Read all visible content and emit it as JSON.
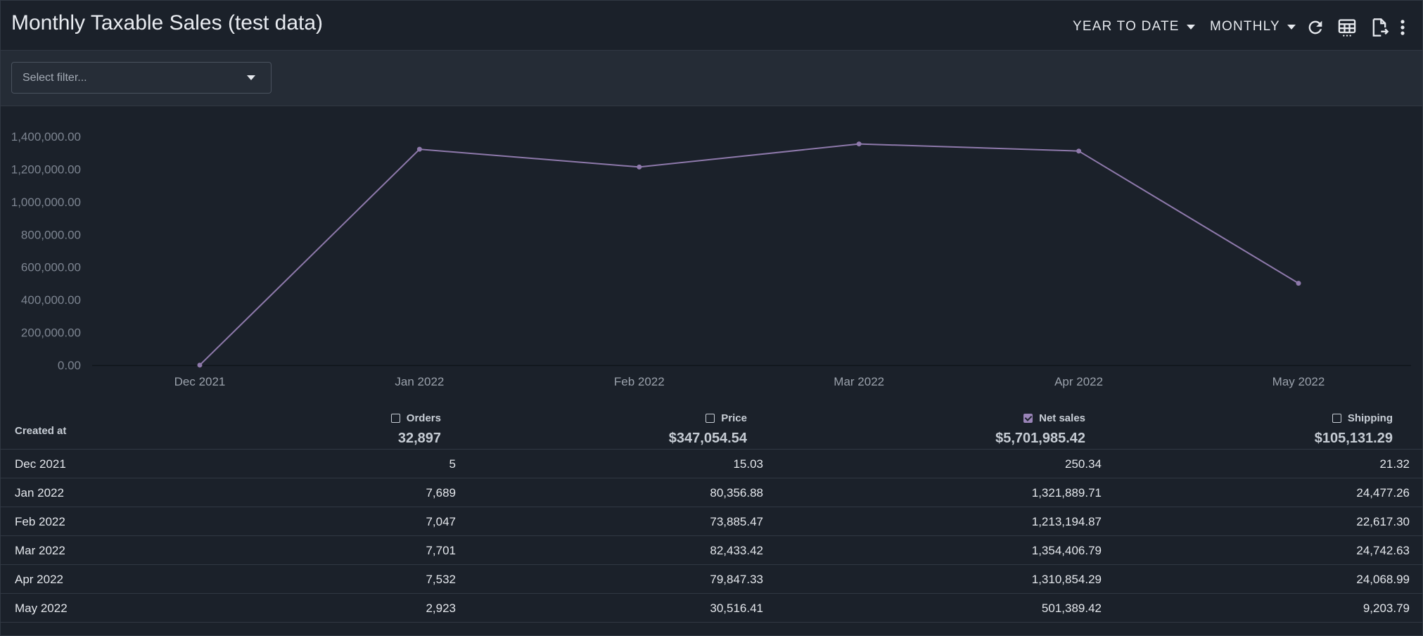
{
  "header": {
    "title": "Monthly Taxable Sales (test data)",
    "date_range_label": "YEAR TO DATE",
    "interval_label": "MONTHLY"
  },
  "filter": {
    "placeholder": "Select filter..."
  },
  "colors": {
    "line": "#8e79ab",
    "background": "#1b212a",
    "accent_checkbox": "#9a84b8"
  },
  "icons": [
    "refresh-icon",
    "table-view-icon",
    "export-document-icon",
    "more-vert-icon"
  ],
  "chart_data": {
    "type": "line",
    "title": "",
    "xlabel": "",
    "ylabel": "",
    "categories": [
      "Dec 2021",
      "Jan 2022",
      "Feb 2022",
      "Mar 2022",
      "Apr 2022",
      "May 2022"
    ],
    "series": [
      {
        "name": "Net sales",
        "values": [
          250.34,
          1321889.71,
          1213194.87,
          1354406.79,
          1310854.29,
          501389.42
        ]
      }
    ],
    "y_ticks": [
      "0.00",
      "200,000.00",
      "400,000.00",
      "600,000.00",
      "800,000.00",
      "1,000,000.00",
      "1,200,000.00",
      "1,400,000.00"
    ],
    "ylim": [
      0,
      1400000
    ],
    "grid": false,
    "legend": "none"
  },
  "table": {
    "first_column_header": "Created at",
    "columns": [
      {
        "label": "Orders",
        "total": "32,897",
        "checked": false
      },
      {
        "label": "Price",
        "total": "$347,054.54",
        "checked": false
      },
      {
        "label": "Net sales",
        "total": "$5,701,985.42",
        "checked": true
      },
      {
        "label": "Shipping",
        "total": "$105,131.29",
        "checked": false
      }
    ],
    "rows": [
      [
        "Dec 2021",
        "5",
        "15.03",
        "250.34",
        "21.32"
      ],
      [
        "Jan 2022",
        "7,689",
        "80,356.88",
        "1,321,889.71",
        "24,477.26"
      ],
      [
        "Feb 2022",
        "7,047",
        "73,885.47",
        "1,213,194.87",
        "22,617.30"
      ],
      [
        "Mar 2022",
        "7,701",
        "82,433.42",
        "1,354,406.79",
        "24,742.63"
      ],
      [
        "Apr 2022",
        "7,532",
        "79,847.33",
        "1,310,854.29",
        "24,068.99"
      ],
      [
        "May 2022",
        "2,923",
        "30,516.41",
        "501,389.42",
        "9,203.79"
      ]
    ]
  }
}
